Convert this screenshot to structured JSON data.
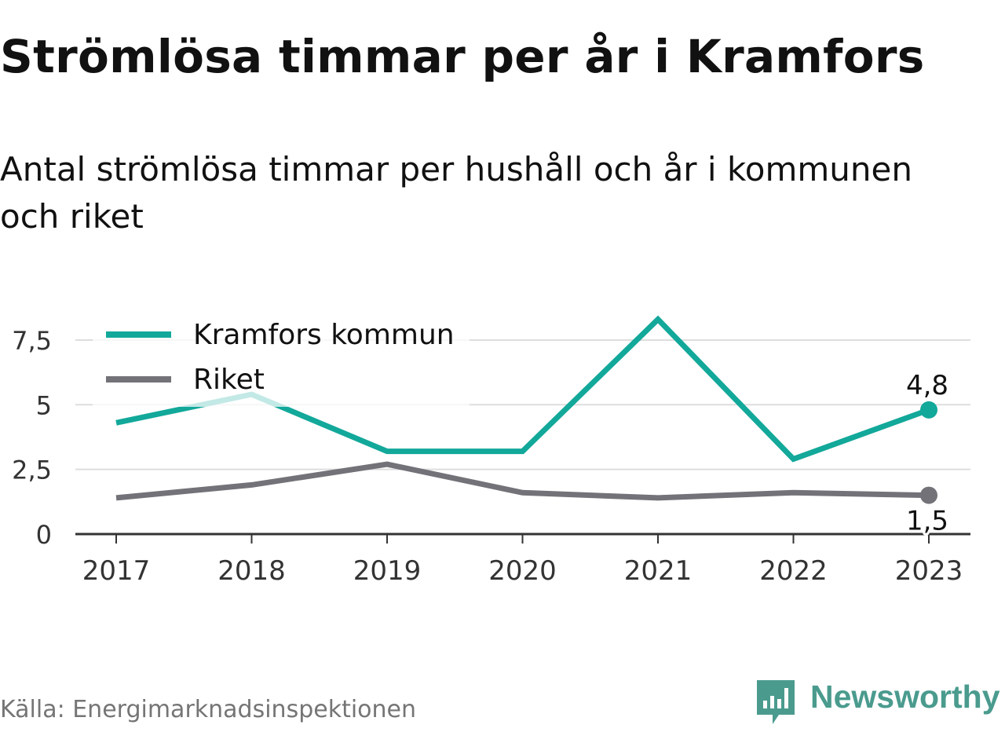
{
  "title": "Strömlösa timmar per år i Kramfors",
  "subtitle": "Antal strömlösa timmar per hushåll och år i kommunen och riket",
  "source": "Källa: Energimarknadsinspektionen",
  "brand": {
    "name": "Newsworthy",
    "color": "#4a9b8e"
  },
  "chart_data": {
    "type": "line",
    "x": [
      "2017",
      "2018",
      "2019",
      "2020",
      "2021",
      "2022",
      "2023"
    ],
    "ylim": [
      0,
      8.5
    ],
    "yticks": [
      0,
      2.5,
      5,
      7.5
    ],
    "ytick_labels": [
      "0",
      "2,5",
      "5",
      "7,5"
    ],
    "grid": true,
    "legend": "top-left",
    "series": [
      {
        "name": "Kramfors kommun",
        "color": "#12a89a",
        "values": [
          4.3,
          5.4,
          3.2,
          3.2,
          8.3,
          2.9,
          4.8
        ],
        "end_label": "4,8"
      },
      {
        "name": "Riket",
        "color": "#737278",
        "values": [
          1.4,
          1.9,
          2.7,
          1.6,
          1.4,
          1.6,
          1.5
        ],
        "end_label": "1,5"
      }
    ]
  }
}
